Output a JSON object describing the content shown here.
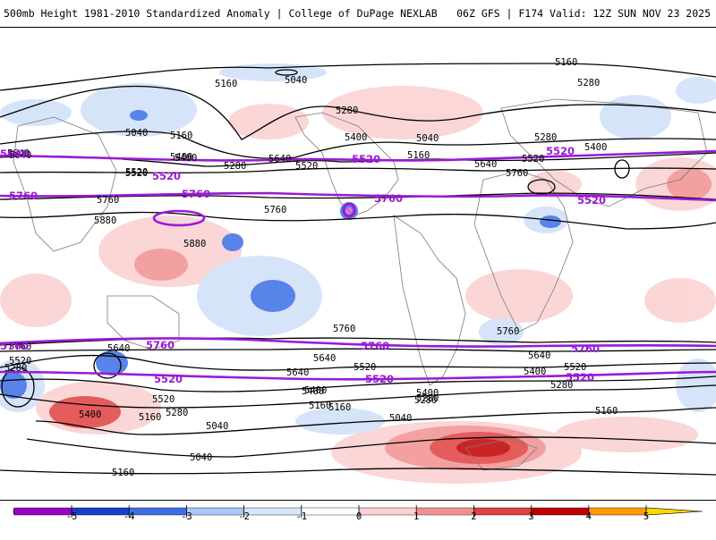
{
  "header": {
    "title": "500mb Height 1981-2010 Standardized Anomaly | College of DuPage NEXLAB",
    "run_info": "06Z GFS | F174 Valid: 12Z SUN NOV 23 2025"
  },
  "colors": {
    "contour": "#000000",
    "highlight_contour": "#9a1ad6",
    "coast": "#7a7a7a"
  },
  "contour_labels": {
    "black": [
      "5160",
      "5040",
      "5280",
      "5040",
      "5160",
      "5400",
      "5640",
      "5520",
      "5400",
      "5280",
      "5520",
      "5640",
      "5760",
      "5880",
      "5160",
      "5280",
      "5400",
      "5520",
      "5640",
      "5760",
      "5880",
      "5760",
      "5640",
      "5520",
      "5400",
      "5280",
      "5160",
      "5040",
      "5160",
      "5280",
      "5400",
      "5520",
      "5640",
      "5760",
      "5640",
      "5520",
      "5400",
      "5280",
      "5160",
      "5040",
      "5160",
      "5040",
      "5160",
      "5280",
      "5400",
      "5520",
      "5640",
      "5760",
      "5400",
      "5280",
      "5520",
      "5640",
      "5760",
      "5160",
      "5040",
      "5280",
      "5400"
    ],
    "purple": [
      "5640",
      "5520",
      "5760",
      "5520",
      "5760",
      "5520",
      "5520",
      "5760",
      "5760",
      "5520",
      "5760",
      "5760",
      "5760",
      "5520",
      "5520"
    ]
  },
  "legend": {
    "ticks": [
      "-5",
      "-4",
      "-3",
      "-2",
      "-1",
      "0",
      "1",
      "2",
      "3",
      "4",
      "5"
    ],
    "colors": [
      "#e060e0",
      "#9a00c8",
      "#1a3ec8",
      "#3c6ee6",
      "#a8c8f5",
      "#d8e6fb",
      "#ffffff",
      "#fbd0d0",
      "#f29090",
      "#e04040",
      "#c00000",
      "#ff9a00",
      "#ffd700"
    ]
  }
}
